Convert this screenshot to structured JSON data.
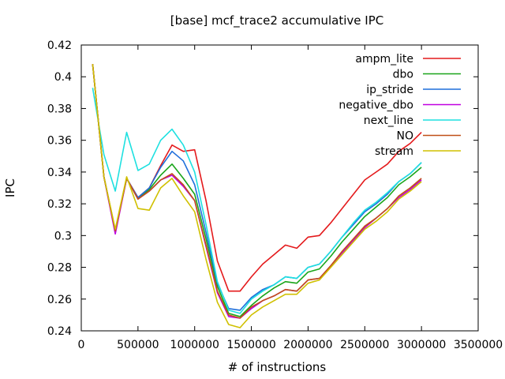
{
  "chart_data": {
    "type": "line",
    "title": "[base] mcf_trace2 accumulative IPC",
    "xlabel": "# of instructions",
    "ylabel": "IPC",
    "xlim": [
      0,
      3500000
    ],
    "ylim": [
      0.24,
      0.42
    ],
    "xticks": [
      0,
      500000,
      1000000,
      1500000,
      2000000,
      2500000,
      3000000,
      3500000
    ],
    "xtick_labels": [
      "0",
      "500000",
      "1000000",
      "1500000",
      "2000000",
      "2500000",
      "3000000",
      "3500000"
    ],
    "yticks": [
      0.24,
      0.26,
      0.28,
      0.3,
      0.32,
      0.34,
      0.36,
      0.38,
      0.4,
      0.42
    ],
    "ytick_labels": [
      "0.24",
      "0.26",
      "0.28",
      "0.3",
      "0.32",
      "0.34",
      "0.36",
      "0.38",
      "0.4",
      "0.42"
    ],
    "grid": false,
    "legend_position": "top-right",
    "x": [
      100000,
      200000,
      300000,
      400000,
      500000,
      600000,
      700000,
      800000,
      900000,
      1000000,
      1100000,
      1200000,
      1300000,
      1400000,
      1500000,
      1600000,
      1700000,
      1800000,
      1900000,
      2000000,
      2100000,
      2200000,
      2300000,
      2400000,
      2500000,
      2600000,
      2700000,
      2800000,
      2900000,
      3000000
    ],
    "series": [
      {
        "name": "ampm_lite",
        "color": "#e41a1c",
        "values": [
          0.408,
          0.337,
          0.303,
          0.336,
          0.324,
          0.33,
          0.344,
          0.357,
          0.353,
          0.354,
          0.322,
          0.284,
          0.265,
          0.265,
          0.274,
          0.282,
          0.288,
          0.294,
          0.292,
          0.299,
          0.3,
          0.308,
          0.317,
          0.326,
          0.335,
          0.34,
          0.345,
          0.353,
          0.358,
          0.365
        ]
      },
      {
        "name": "dbo",
        "color": "#1aa51a",
        "values": [
          0.408,
          0.337,
          0.303,
          0.336,
          0.323,
          0.329,
          0.338,
          0.345,
          0.336,
          0.326,
          0.298,
          0.268,
          0.251,
          0.249,
          0.256,
          0.262,
          0.267,
          0.271,
          0.27,
          0.277,
          0.279,
          0.287,
          0.296,
          0.304,
          0.312,
          0.318,
          0.324,
          0.332,
          0.337,
          0.343
        ]
      },
      {
        "name": "ip_stride",
        "color": "#1f6fdb",
        "values": [
          0.408,
          0.337,
          0.303,
          0.336,
          0.324,
          0.33,
          0.343,
          0.353,
          0.347,
          0.332,
          0.302,
          0.27,
          0.254,
          0.253,
          0.261,
          0.266,
          0.269,
          0.274,
          0.273,
          0.28,
          0.282,
          0.29,
          0.299,
          0.307,
          0.315,
          0.32,
          0.326,
          0.334,
          0.339,
          0.346
        ]
      },
      {
        "name": "negative_dbo",
        "color": "#c000e0",
        "values": [
          0.408,
          0.337,
          0.301,
          0.336,
          0.323,
          0.328,
          0.335,
          0.338,
          0.331,
          0.322,
          0.293,
          0.264,
          0.249,
          0.248,
          0.254,
          0.259,
          0.262,
          0.266,
          0.265,
          0.272,
          0.273,
          0.281,
          0.289,
          0.297,
          0.305,
          0.311,
          0.317,
          0.324,
          0.329,
          0.335
        ]
      },
      {
        "name": "next_line",
        "color": "#1ee0e0",
        "values": [
          0.393,
          0.351,
          0.328,
          0.365,
          0.341,
          0.345,
          0.36,
          0.367,
          0.357,
          0.34,
          0.307,
          0.271,
          0.253,
          0.251,
          0.26,
          0.265,
          0.269,
          0.274,
          0.273,
          0.28,
          0.282,
          0.29,
          0.299,
          0.308,
          0.316,
          0.321,
          0.327,
          0.334,
          0.339,
          0.346
        ]
      },
      {
        "name": "NO",
        "color": "#c05018",
        "values": [
          0.408,
          0.337,
          0.303,
          0.336,
          0.323,
          0.328,
          0.335,
          0.339,
          0.332,
          0.322,
          0.294,
          0.265,
          0.25,
          0.248,
          0.255,
          0.259,
          0.262,
          0.266,
          0.265,
          0.272,
          0.273,
          0.281,
          0.29,
          0.298,
          0.306,
          0.311,
          0.317,
          0.325,
          0.33,
          0.336
        ]
      },
      {
        "name": "stream",
        "color": "#d0c000",
        "values": [
          0.408,
          0.337,
          0.304,
          0.337,
          0.317,
          0.316,
          0.33,
          0.336,
          0.325,
          0.315,
          0.285,
          0.258,
          0.244,
          0.242,
          0.25,
          0.255,
          0.259,
          0.263,
          0.263,
          0.27,
          0.272,
          0.28,
          0.288,
          0.296,
          0.304,
          0.309,
          0.315,
          0.323,
          0.328,
          0.334
        ]
      }
    ]
  }
}
